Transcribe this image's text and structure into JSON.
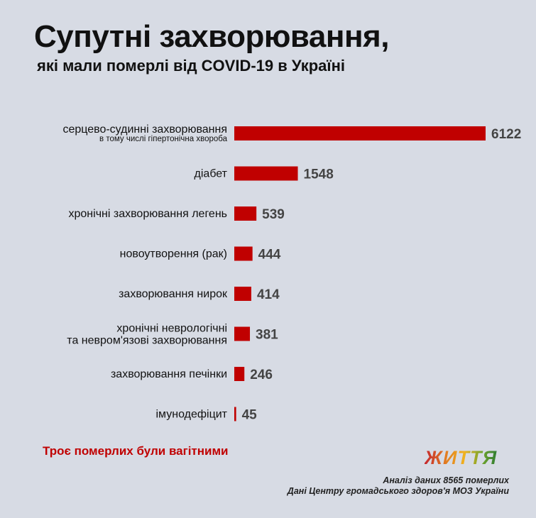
{
  "chart_data": {
    "type": "bar",
    "orientation": "horizontal",
    "title": "Супутні захворювання,",
    "subtitle": "які мали померлі від COVID-19 в Україні",
    "categories": [
      "серцево-судинні захворювання",
      "діабет",
      "хронічні захворювання легень",
      "новоутворення (рак)",
      "захворювання нирок",
      "хронічні неврологічні та невром'язові захворювання",
      "захворювання печінки",
      "імунодефіцит"
    ],
    "category_lines": [
      [
        "серцево-судинні захворювання"
      ],
      [
        "діабет"
      ],
      [
        "хронічні захворювання легень"
      ],
      [
        "новоутворення (рак)"
      ],
      [
        "захворювання нирок"
      ],
      [
        "хронічні неврологічні",
        "та невром'язові захворювання"
      ],
      [
        "захворювання печінки"
      ],
      [
        "імунодефіцит"
      ]
    ],
    "category_notes": [
      "в тому числі гіпертонічна хвороба",
      "",
      "",
      "",
      "",
      "",
      "",
      ""
    ],
    "values": [
      6122,
      1548,
      539,
      444,
      414,
      381,
      246,
      45
    ],
    "value_labels": [
      "6122",
      "1548",
      "539",
      "444",
      "414",
      "381",
      "246",
      "45"
    ],
    "xlim": [
      0,
      6122
    ],
    "grid": false,
    "colors": {
      "bar": "#c00000",
      "label": "#111111",
      "value": "#444444"
    }
  },
  "note": "Троє померлих були вагітними",
  "logo": "ЖИТТЯ",
  "source": {
    "line1": "Аналіз даних 8565 померлих",
    "line2": "Дані Центру громадського здоров'я МОЗ України"
  }
}
